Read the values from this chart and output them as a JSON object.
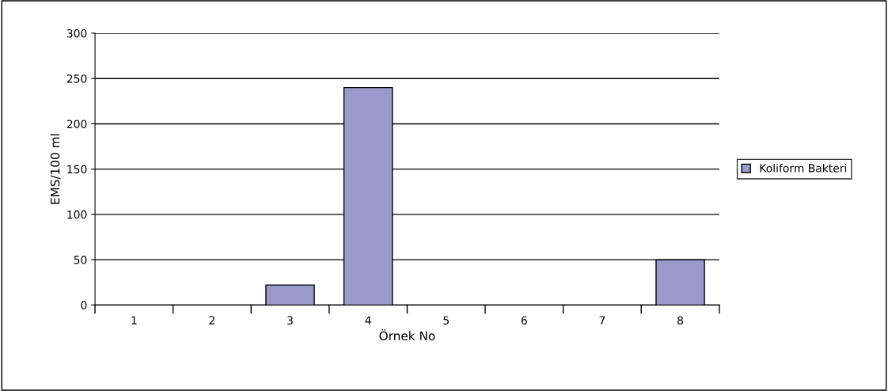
{
  "chart_data": {
    "type": "bar",
    "xlabel": "Örnek No",
    "ylabel": "EMS/100 ml",
    "categories": [
      "1",
      "2",
      "3",
      "4",
      "5",
      "6",
      "7",
      "8"
    ],
    "series": [
      {
        "name": "Koliform Bakteri",
        "color": "#9999cc",
        "values": [
          null,
          null,
          22,
          240,
          null,
          null,
          null,
          50
        ]
      }
    ],
    "ylim": [
      0,
      300
    ],
    "yticks": [
      0,
      50,
      100,
      150,
      200,
      250,
      300
    ],
    "grid": "y",
    "legend": "right"
  }
}
